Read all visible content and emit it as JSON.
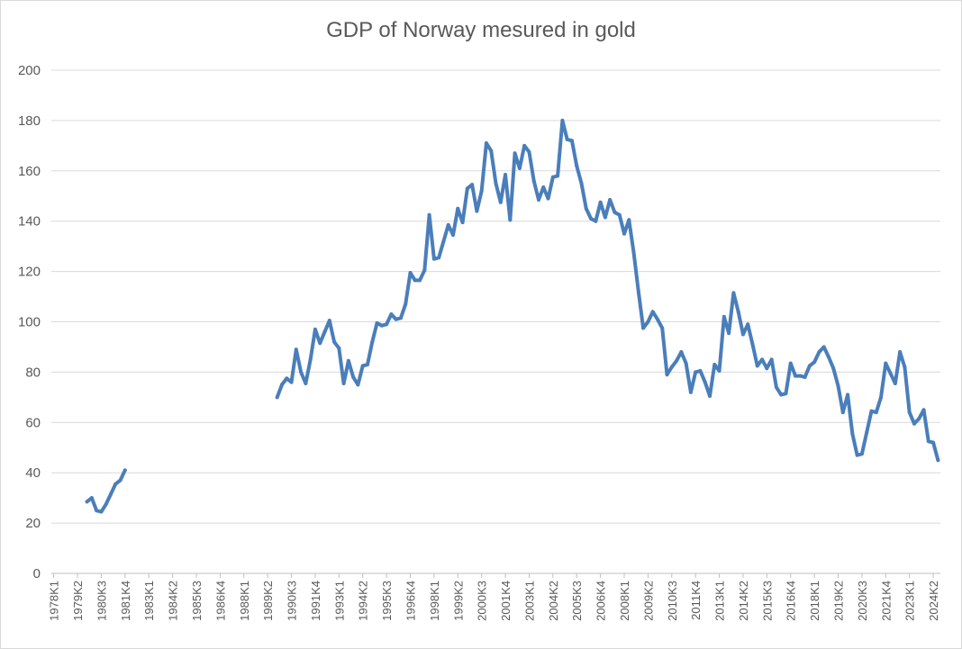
{
  "chart_data": {
    "type": "line",
    "title": "GDP of Norway mesured in gold",
    "xlabel": "",
    "ylabel": "",
    "ylim": [
      0,
      200
    ],
    "yticks": [
      0,
      20,
      40,
      60,
      80,
      100,
      120,
      140,
      160,
      180,
      200
    ],
    "x_start": "1978K1",
    "period": "quarterly",
    "x_tick_labels": [
      "1978K1",
      "1979K2",
      "1980K3",
      "1981K4",
      "1983K1",
      "1984K2",
      "1985K3",
      "1986K4",
      "1988K1",
      "1989K2",
      "1990K3",
      "1991K4",
      "1993K1",
      "1994K2",
      "1995K3",
      "1996K4",
      "1998K1",
      "1999K2",
      "2000K3",
      "2001K4",
      "2003K1",
      "2004K2",
      "2005K3",
      "2006K4",
      "2008K1",
      "2009K2",
      "2010K3",
      "2011K4",
      "2013K1",
      "2014K2",
      "2015K3",
      "2016K4",
      "2018K1",
      "2019K2",
      "2020K3",
      "2021K4",
      "2023K1",
      "2024K2"
    ],
    "grid": true,
    "legend": "none",
    "colors": {
      "line": "#4a7ebb",
      "grid": "#d9d9d9",
      "text": "#595959"
    },
    "series": [
      {
        "values": [
          null,
          null,
          null,
          null,
          null,
          null,
          null,
          28.5,
          30,
          25,
          24.5,
          27.5,
          31.5,
          35.5,
          37,
          41,
          null,
          null,
          null,
          null,
          null,
          null,
          null,
          null,
          null,
          null,
          null,
          null,
          null,
          null,
          null,
          null,
          null,
          null,
          null,
          null,
          null,
          null,
          null,
          null,
          null,
          null,
          null,
          null,
          null,
          null,
          null,
          70,
          75,
          77.5,
          76,
          89,
          80,
          75.5,
          85,
          97,
          91.5,
          96,
          100.5,
          92,
          89.5,
          75.5,
          84.5,
          78,
          75,
          82.5,
          83,
          92,
          99.5,
          98.5,
          99,
          103,
          101,
          101.5,
          107,
          119.5,
          116.5,
          116.5,
          120.5,
          142.5,
          125,
          125.5,
          132,
          138.5,
          134.5,
          145,
          139.5,
          153,
          154.5,
          144,
          152,
          171,
          168,
          155,
          147.5,
          158.5,
          140.5,
          167,
          161,
          170,
          167.5,
          156,
          148.5,
          153.5,
          149,
          157.5,
          158,
          180,
          172.5,
          172,
          162,
          155,
          145,
          141,
          140,
          147.5,
          141.5,
          148.5,
          143.5,
          142.5,
          135,
          140.5,
          127.5,
          112,
          97.5,
          100,
          104,
          101,
          97.5,
          79,
          82,
          84.5,
          88,
          83.5,
          72,
          80,
          80.5,
          76,
          70.5,
          83,
          80.5,
          102,
          95.5,
          111.5,
          104,
          95,
          99,
          91,
          82.5,
          85,
          81.5,
          85,
          74,
          71,
          71.5,
          83.5,
          78.5,
          78.5,
          78,
          82.5,
          84,
          88,
          90,
          86,
          81.5,
          74.5,
          64,
          71,
          55.5,
          47,
          47.5,
          56,
          64.5,
          64,
          70,
          83.5,
          79.5,
          75.5,
          88,
          82,
          64,
          59.5,
          61.5,
          65,
          52.5,
          52,
          45
        ]
      }
    ]
  }
}
